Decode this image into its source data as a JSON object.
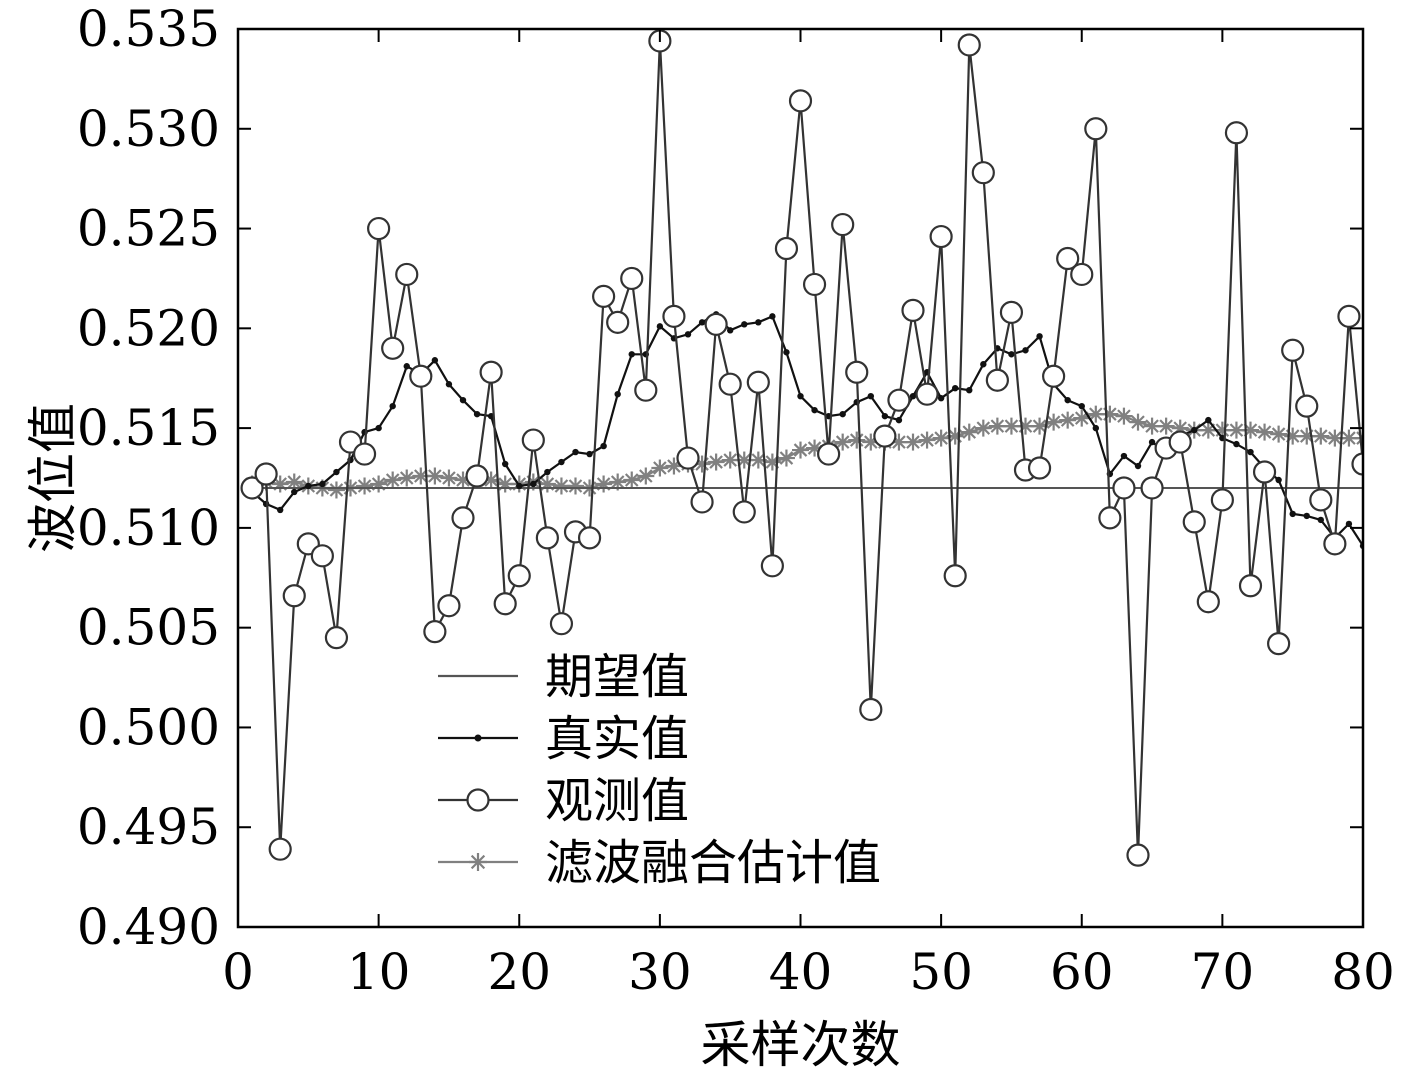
{
  "chart_data": {
    "type": "line",
    "title": "",
    "xlabel": "采样次数",
    "ylabel": "波位值",
    "xlim": [
      0,
      80
    ],
    "ylim": [
      0.49,
      0.535
    ],
    "xticks": [
      0,
      10,
      20,
      30,
      40,
      50,
      60,
      70,
      80
    ],
    "xtick_labels": [
      "0",
      "10",
      "20",
      "30",
      "40",
      "50",
      "60",
      "70",
      "80"
    ],
    "yticks": [
      0.49,
      0.495,
      0.5,
      0.505,
      0.51,
      0.515,
      0.52,
      0.525,
      0.53,
      0.535
    ],
    "ytick_labels": [
      "0.490",
      "0.495",
      "0.500",
      "0.505",
      "0.510",
      "0.515",
      "0.520",
      "0.525",
      "0.530",
      "0.535"
    ],
    "grid": false,
    "legend_position": "bottom-left",
    "x": [
      1,
      2,
      3,
      4,
      5,
      6,
      7,
      8,
      9,
      10,
      11,
      12,
      13,
      14,
      15,
      16,
      17,
      18,
      19,
      20,
      21,
      22,
      23,
      24,
      25,
      26,
      27,
      28,
      29,
      30,
      31,
      32,
      33,
      34,
      35,
      36,
      37,
      38,
      39,
      40,
      41,
      42,
      43,
      44,
      45,
      46,
      47,
      48,
      49,
      50,
      51,
      52,
      53,
      54,
      55,
      56,
      57,
      58,
      59,
      60,
      61,
      62,
      63,
      64,
      65,
      66,
      67,
      68,
      69,
      70,
      71,
      72,
      73,
      74,
      75,
      76,
      77,
      78,
      79,
      80
    ],
    "series": [
      {
        "name": "期望值",
        "style": "line",
        "color": "#555555",
        "values": [
          0.512,
          0.512,
          0.512,
          0.512,
          0.512,
          0.512,
          0.512,
          0.512,
          0.512,
          0.512,
          0.512,
          0.512,
          0.512,
          0.512,
          0.512,
          0.512,
          0.512,
          0.512,
          0.512,
          0.512,
          0.512,
          0.512,
          0.512,
          0.512,
          0.512,
          0.512,
          0.512,
          0.512,
          0.512,
          0.512,
          0.512,
          0.512,
          0.512,
          0.512,
          0.512,
          0.512,
          0.512,
          0.512,
          0.512,
          0.512,
          0.512,
          0.512,
          0.512,
          0.512,
          0.512,
          0.512,
          0.512,
          0.512,
          0.512,
          0.512,
          0.512,
          0.512,
          0.512,
          0.512,
          0.512,
          0.512,
          0.512,
          0.512,
          0.512,
          0.512,
          0.512,
          0.512,
          0.512,
          0.512,
          0.512,
          0.512,
          0.512,
          0.512,
          0.512,
          0.512,
          0.512,
          0.512,
          0.512,
          0.512,
          0.512,
          0.512,
          0.512,
          0.512,
          0.512,
          0.512
        ]
      },
      {
        "name": "真实值",
        "style": "line-dot",
        "color": "#111111",
        "values": [
          0.5118,
          0.5112,
          0.5109,
          0.5118,
          0.5121,
          0.5122,
          0.5128,
          0.5134,
          0.5148,
          0.515,
          0.5161,
          0.5181,
          0.5177,
          0.5184,
          0.5172,
          0.5164,
          0.5157,
          0.5156,
          0.5132,
          0.5121,
          0.5122,
          0.5128,
          0.5133,
          0.5138,
          0.5137,
          0.5141,
          0.5167,
          0.5187,
          0.5187,
          0.5201,
          0.5195,
          0.5197,
          0.5203,
          0.5207,
          0.5199,
          0.5202,
          0.5203,
          0.5206,
          0.5188,
          0.5166,
          0.5159,
          0.5156,
          0.5157,
          0.5163,
          0.5166,
          0.5156,
          0.5154,
          0.5166,
          0.5178,
          0.5165,
          0.517,
          0.5169,
          0.5182,
          0.519,
          0.5187,
          0.5189,
          0.5196,
          0.5172,
          0.5164,
          0.5161,
          0.515,
          0.5127,
          0.5136,
          0.5131,
          0.5143,
          0.5138,
          0.5146,
          0.5149,
          0.5154,
          0.5145,
          0.5142,
          0.5138,
          0.513,
          0.5124,
          0.5107,
          0.5106,
          0.5104,
          0.5095,
          0.5102,
          0.5091
        ]
      },
      {
        "name": "观测值",
        "style": "line-circle",
        "color": "#333333",
        "values": [
          0.512,
          0.5127,
          0.4939,
          0.5066,
          0.5092,
          0.5086,
          0.5045,
          0.5143,
          0.5137,
          0.525,
          0.519,
          0.5227,
          0.5176,
          0.5048,
          0.5061,
          0.5105,
          0.5126,
          0.5178,
          0.5062,
          0.5076,
          0.5144,
          0.5095,
          0.5052,
          0.5098,
          0.5095,
          0.5216,
          0.5203,
          0.5225,
          0.5169,
          0.5344,
          0.5206,
          0.5135,
          0.5113,
          0.5202,
          0.5172,
          0.5108,
          0.5173,
          0.5081,
          0.524,
          0.5314,
          0.5222,
          0.5137,
          0.5252,
          0.5178,
          0.5009,
          0.5146,
          0.5164,
          0.5209,
          0.5167,
          0.5246,
          0.5076,
          0.5342,
          0.5278,
          0.5174,
          0.5208,
          0.5129,
          0.513,
          0.5176,
          0.5235,
          0.5227,
          0.53,
          0.5105,
          0.512,
          0.4936,
          0.512,
          0.514,
          0.5143,
          0.5103,
          0.5063,
          0.5114,
          0.5298,
          0.5071,
          0.5128,
          0.5042,
          0.5189,
          0.5161,
          0.5114,
          0.5092,
          0.5206,
          0.5132
        ]
      },
      {
        "name": "滤波融合估计值",
        "style": "line-star",
        "color": "#808080",
        "values": [
          0.5122,
          0.5123,
          0.5122,
          0.5123,
          0.5121,
          0.512,
          0.5119,
          0.512,
          0.5121,
          0.5122,
          0.5124,
          0.5125,
          0.5126,
          0.5126,
          0.5125,
          0.5124,
          0.5124,
          0.5124,
          0.5122,
          0.5122,
          0.5123,
          0.5122,
          0.5121,
          0.5121,
          0.512,
          0.5122,
          0.5123,
          0.5124,
          0.5126,
          0.513,
          0.5131,
          0.5132,
          0.5132,
          0.5133,
          0.5134,
          0.5134,
          0.5134,
          0.5133,
          0.5135,
          0.5139,
          0.514,
          0.5141,
          0.5143,
          0.5144,
          0.5143,
          0.5143,
          0.5143,
          0.5143,
          0.5144,
          0.5145,
          0.5146,
          0.5148,
          0.515,
          0.5151,
          0.5151,
          0.5151,
          0.5151,
          0.5153,
          0.5154,
          0.5155,
          0.5157,
          0.5157,
          0.5156,
          0.5153,
          0.5151,
          0.5151,
          0.515,
          0.5149,
          0.5149,
          0.5149,
          0.5149,
          0.5149,
          0.5148,
          0.5147,
          0.5146,
          0.5146,
          0.5146,
          0.5145,
          0.5145,
          0.5145
        ]
      }
    ]
  }
}
